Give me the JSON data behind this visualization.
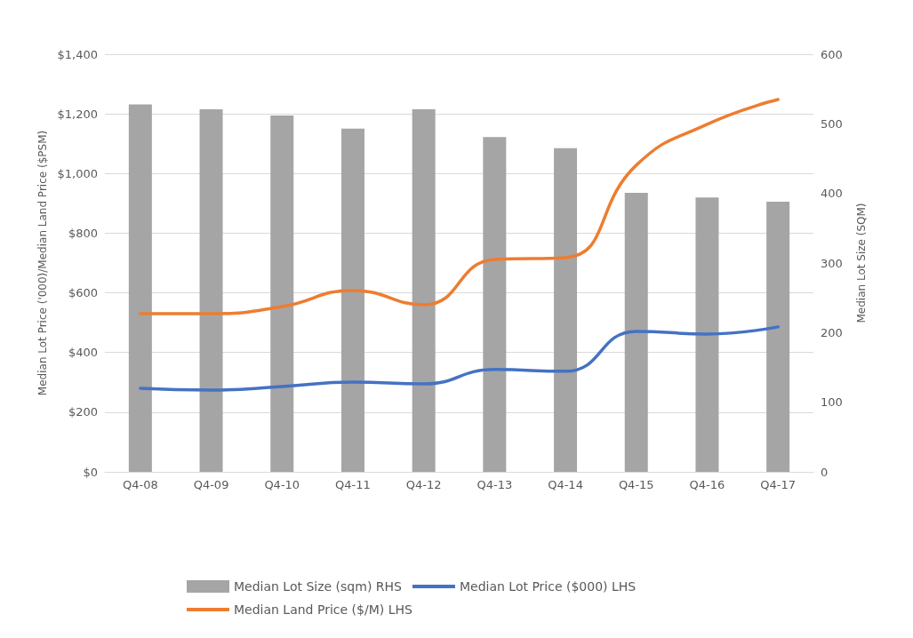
{
  "chart_data": {
    "type": "bar",
    "ylabel": "Median Lot Price ('000)/Median Land Price ($PSM)",
    "y2label": "Median Lot Size (SQM)",
    "categories": [
      "Q4-08",
      "Q4-09",
      "Q4-10",
      "Q4-11",
      "Q4-12",
      "Q4-13",
      "Q4-14",
      "Q4-15",
      "Q4-16",
      "Q4-17"
    ],
    "series": [
      {
        "name": "Median Lot Size (sqm) RHS",
        "axis": "y2",
        "color": "#a5a5a5",
        "values": [
          528,
          521,
          512,
          493,
          521,
          481,
          465,
          401,
          394,
          388
        ]
      },
      {
        "name": "Median Lot Price ($000) LHS",
        "type": "line",
        "color": "#4472c4",
        "values": [
          280,
          274,
          286,
          301,
          295,
          343,
          337,
          471,
          462,
          486
        ]
      },
      {
        "name": "Median Land Price ($/M) LHS",
        "type": "line",
        "color": "#ed7d31",
        "values": [
          530,
          530,
          554,
          608,
          560,
          712,
          718,
          1028,
          1165,
          1248
        ]
      }
    ],
    "ylim": [
      0,
      1400
    ],
    "yticks": [
      {
        "value": 0,
        "label": "$0"
      },
      {
        "value": 200,
        "label": "$200"
      },
      {
        "value": 400,
        "label": "$400"
      },
      {
        "value": 600,
        "label": "$600"
      },
      {
        "value": 800,
        "label": "$800"
      },
      {
        "value": 1000,
        "label": "$1,000"
      },
      {
        "value": 1200,
        "label": "$1,200"
      },
      {
        "value": 1400,
        "label": "$1,400"
      }
    ],
    "y2lim": [
      0,
      600
    ],
    "y2ticks": [
      0,
      100,
      200,
      300,
      400,
      500,
      600
    ],
    "grid": "y",
    "legend": "bottom",
    "marker": "none",
    "line_style": "solid"
  }
}
